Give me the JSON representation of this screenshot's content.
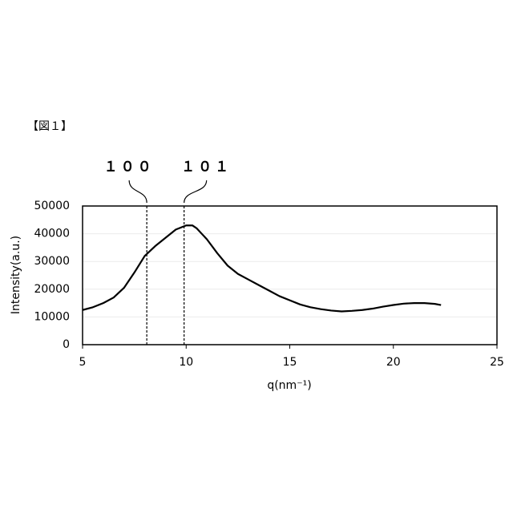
{
  "figure_label": "【図１】",
  "chart_data": {
    "type": "line",
    "x_label": "q(nm⁻¹)",
    "y_label": "Intensity(a.u.)",
    "series": [
      {
        "color": "#000000",
        "x": [
          5,
          5.5,
          6,
          6.5,
          7,
          7.5,
          8,
          8.5,
          9,
          9.5,
          10,
          10.3,
          10.5,
          11,
          11.5,
          12,
          12.5,
          13,
          13.5,
          14,
          14.5,
          15,
          15.5,
          16,
          16.5,
          17,
          17.5,
          18,
          18.5,
          19,
          19.5,
          20,
          20.5,
          21,
          21.5,
          22,
          22.3
        ],
        "values": [
          12500,
          13500,
          15000,
          17000,
          20500,
          26000,
          32000,
          35500,
          38500,
          41500,
          43000,
          43000,
          42000,
          38000,
          33000,
          28500,
          25500,
          23500,
          21500,
          19500,
          17500,
          16000,
          14500,
          13500,
          12800,
          12300,
          12000,
          12200,
          12500,
          13000,
          13700,
          14300,
          14800,
          15000,
          15000,
          14700,
          14300
        ]
      }
    ],
    "reference_lines": [
      {
        "x": 8.1,
        "label": "１００"
      },
      {
        "x": 9.9,
        "label": "１０１"
      }
    ],
    "xlim": [
      5,
      25
    ],
    "xticks": [
      5,
      10,
      15,
      20,
      25
    ],
    "ylim": [
      0,
      50000
    ],
    "yticks": [
      0,
      10000,
      20000,
      30000,
      40000,
      50000
    ],
    "grid": true
  }
}
